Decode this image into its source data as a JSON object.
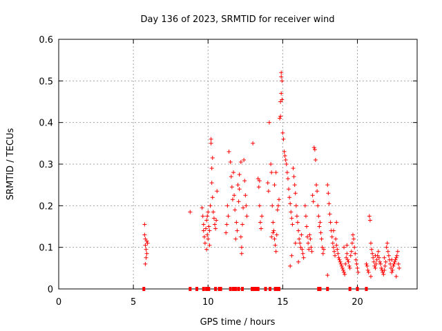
{
  "chart_data": {
    "type": "scatter",
    "title": "Day 136 of 2023, SRMTID for receiver wind",
    "xlabel": "GPS time / hours",
    "ylabel": "SRMTID / TECUs",
    "xlim": [
      0,
      24
    ],
    "ylim": [
      0,
      0.6
    ],
    "x_ticks": [
      0,
      5,
      10,
      15,
      20
    ],
    "x_tick_labels": [
      "0",
      "5",
      "10",
      "15",
      "20"
    ],
    "y_ticks": [
      0,
      0.1,
      0.2,
      0.3,
      0.4,
      0.5,
      0.6
    ],
    "y_tick_labels": [
      "0",
      "0.1",
      "0.2",
      "0.3",
      "0.4",
      "0.5",
      "0.6"
    ],
    "grid": true,
    "series": [
      {
        "name": "SRMTID",
        "color": "#ff0000",
        "marker": "plus",
        "points": [
          [
            5.75,
            0.155
          ],
          [
            5.75,
            0.13
          ],
          [
            5.8,
            0.12
          ],
          [
            5.8,
            0.105
          ],
          [
            5.85,
            0.095
          ],
          [
            5.85,
            0.075
          ],
          [
            5.8,
            0.06
          ],
          [
            5.9,
            0.115
          ],
          [
            5.9,
            0.085
          ],
          [
            5.95,
            0.11
          ],
          [
            8.8,
            0.185
          ],
          [
            9.6,
            0.195
          ],
          [
            9.65,
            0.175
          ],
          [
            9.7,
            0.155
          ],
          [
            9.7,
            0.14
          ],
          [
            9.75,
            0.125
          ],
          [
            9.8,
            0.11
          ],
          [
            9.85,
            0.145
          ],
          [
            9.9,
            0.165
          ],
          [
            9.9,
            0.095
          ],
          [
            9.95,
            0.13
          ],
          [
            10.0,
            0.12
          ],
          [
            10.0,
            0.185
          ],
          [
            10.05,
            0.15
          ],
          [
            10.1,
            0.105
          ],
          [
            10.15,
            0.2
          ],
          [
            10.2,
            0.36
          ],
          [
            10.2,
            0.35
          ],
          [
            10.25,
            0.255
          ],
          [
            10.3,
            0.22
          ],
          [
            10.35,
            0.185
          ],
          [
            10.4,
            0.17
          ],
          [
            10.45,
            0.155
          ],
          [
            10.5,
            0.145
          ],
          [
            10.55,
            0.165
          ],
          [
            10.6,
            0.235
          ],
          [
            10.25,
            0.29
          ],
          [
            10.3,
            0.315
          ],
          [
            10.1,
            0.14
          ],
          [
            9.95,
            0.175
          ],
          [
            11.2,
            0.135
          ],
          [
            11.25,
            0.155
          ],
          [
            11.3,
            0.2
          ],
          [
            11.35,
            0.175
          ],
          [
            11.4,
            0.33
          ],
          [
            11.5,
            0.305
          ],
          [
            11.55,
            0.27
          ],
          [
            11.6,
            0.245
          ],
          [
            11.65,
            0.215
          ],
          [
            11.7,
            0.28
          ],
          [
            11.75,
            0.225
          ],
          [
            11.8,
            0.19
          ],
          [
            11.9,
            0.16
          ],
          [
            11.95,
            0.14
          ],
          [
            12.0,
            0.25
          ],
          [
            12.05,
            0.21
          ],
          [
            12.1,
            0.275
          ],
          [
            12.2,
            0.305
          ],
          [
            12.25,
            0.1
          ],
          [
            12.25,
            0.085
          ],
          [
            12.3,
            0.155
          ],
          [
            12.35,
            0.195
          ],
          [
            12.4,
            0.31
          ],
          [
            12.45,
            0.26
          ],
          [
            12.5,
            0.225
          ],
          [
            12.55,
            0.2
          ],
          [
            12.6,
            0.175
          ],
          [
            12.2,
            0.125
          ],
          [
            12.1,
            0.24
          ],
          [
            11.85,
            0.12
          ],
          [
            13.0,
            0.35
          ],
          [
            13.35,
            0.265
          ],
          [
            13.4,
            0.245
          ],
          [
            13.45,
            0.2
          ],
          [
            13.5,
            0.16
          ],
          [
            13.55,
            0.145
          ],
          [
            13.6,
            0.175
          ],
          [
            13.45,
            0.26
          ],
          [
            14.0,
            0.255
          ],
          [
            14.05,
            0.235
          ],
          [
            14.1,
            0.4
          ],
          [
            14.2,
            0.3
          ],
          [
            14.25,
            0.28
          ],
          [
            14.3,
            0.2
          ],
          [
            14.35,
            0.16
          ],
          [
            14.4,
            0.14
          ],
          [
            14.45,
            0.12
          ],
          [
            14.5,
            0.105
          ],
          [
            14.55,
            0.09
          ],
          [
            14.6,
            0.13
          ],
          [
            14.65,
            0.19
          ],
          [
            14.7,
            0.2
          ],
          [
            14.75,
            0.215
          ],
          [
            14.8,
            0.41
          ],
          [
            14.85,
            0.415
          ],
          [
            14.9,
            0.52
          ],
          [
            14.9,
            0.51
          ],
          [
            14.95,
            0.5
          ],
          [
            14.9,
            0.47
          ],
          [
            14.95,
            0.455
          ],
          [
            14.85,
            0.45
          ],
          [
            15.0,
            0.375
          ],
          [
            15.05,
            0.36
          ],
          [
            15.1,
            0.33
          ],
          [
            15.15,
            0.32
          ],
          [
            15.2,
            0.31
          ],
          [
            15.25,
            0.3
          ],
          [
            15.3,
            0.28
          ],
          [
            15.35,
            0.265
          ],
          [
            15.4,
            0.24
          ],
          [
            15.45,
            0.22
          ],
          [
            15.5,
            0.205
          ],
          [
            15.55,
            0.185
          ],
          [
            15.6,
            0.17
          ],
          [
            15.65,
            0.155
          ],
          [
            15.7,
            0.29
          ],
          [
            15.75,
            0.27
          ],
          [
            15.8,
            0.25
          ],
          [
            15.85,
            0.23
          ],
          [
            15.9,
            0.2
          ],
          [
            15.95,
            0.175
          ],
          [
            16.0,
            0.16
          ],
          [
            16.05,
            0.14
          ],
          [
            16.1,
            0.12
          ],
          [
            16.15,
            0.11
          ],
          [
            16.2,
            0.1
          ],
          [
            16.25,
            0.13
          ],
          [
            16.3,
            0.095
          ],
          [
            16.35,
            0.085
          ],
          [
            16.4,
            0.075
          ],
          [
            14.25,
            0.125
          ],
          [
            14.35,
            0.135
          ],
          [
            14.45,
            0.25
          ],
          [
            14.55,
            0.28
          ],
          [
            15.5,
            0.055
          ],
          [
            15.6,
            0.08
          ],
          [
            15.85,
            0.11
          ],
          [
            16.05,
            0.065
          ],
          [
            16.5,
            0.2
          ],
          [
            16.55,
            0.175
          ],
          [
            16.6,
            0.15
          ],
          [
            16.65,
            0.125
          ],
          [
            16.7,
            0.11
          ],
          [
            16.75,
            0.095
          ],
          [
            16.8,
            0.13
          ],
          [
            16.85,
            0.12
          ],
          [
            16.9,
            0.1
          ],
          [
            16.95,
            0.09
          ],
          [
            17.0,
            0.225
          ],
          [
            17.05,
            0.21
          ],
          [
            17.1,
            0.34
          ],
          [
            17.15,
            0.335
          ],
          [
            17.2,
            0.31
          ],
          [
            17.25,
            0.25
          ],
          [
            17.3,
            0.235
          ],
          [
            17.35,
            0.2
          ],
          [
            17.4,
            0.175
          ],
          [
            17.45,
            0.15
          ],
          [
            17.5,
            0.16
          ],
          [
            17.55,
            0.135
          ],
          [
            17.6,
            0.12
          ],
          [
            17.65,
            0.1
          ],
          [
            17.7,
            0.085
          ],
          [
            17.75,
            0.095
          ],
          [
            18.0,
            0.25
          ],
          [
            18.05,
            0.23
          ],
          [
            18.1,
            0.205
          ],
          [
            18.15,
            0.18
          ],
          [
            18.2,
            0.16
          ],
          [
            18.25,
            0.14
          ],
          [
            18.3,
            0.125
          ],
          [
            18.35,
            0.11
          ],
          [
            18.4,
            0.1
          ],
          [
            18.45,
            0.09
          ],
          [
            18.5,
            0.08
          ],
          [
            18.55,
            0.12
          ],
          [
            18.6,
            0.105
          ],
          [
            18.65,
            0.095
          ],
          [
            18.7,
            0.085
          ],
          [
            18.75,
            0.075
          ],
          [
            18.8,
            0.07
          ],
          [
            18.85,
            0.065
          ],
          [
            18.9,
            0.06
          ],
          [
            18.95,
            0.055
          ],
          [
            19.0,
            0.05
          ],
          [
            19.05,
            0.045
          ],
          [
            19.1,
            0.04
          ],
          [
            19.15,
            0.035
          ],
          [
            19.2,
            0.06
          ],
          [
            19.25,
            0.075
          ],
          [
            19.3,
            0.085
          ],
          [
            19.35,
            0.07
          ],
          [
            19.4,
            0.065
          ],
          [
            19.45,
            0.055
          ],
          [
            19.5,
            0.05
          ],
          [
            19.55,
            0.08
          ],
          [
            19.6,
            0.09
          ],
          [
            19.65,
            0.11
          ],
          [
            19.7,
            0.13
          ],
          [
            19.75,
            0.12
          ],
          [
            19.8,
            0.1
          ],
          [
            19.85,
            0.085
          ],
          [
            19.9,
            0.07
          ],
          [
            19.95,
            0.06
          ],
          [
            20.0,
            0.05
          ],
          [
            20.05,
            0.04
          ],
          [
            18.0,
            0.033
          ],
          [
            18.4,
            0.14
          ],
          [
            18.6,
            0.16
          ],
          [
            19.1,
            0.1
          ],
          [
            19.3,
            0.105
          ],
          [
            20.6,
            0.06
          ],
          [
            20.65,
            0.055
          ],
          [
            20.7,
            0.045
          ],
          [
            20.75,
            0.04
          ],
          [
            20.8,
            0.175
          ],
          [
            20.85,
            0.165
          ],
          [
            20.9,
            0.11
          ],
          [
            20.95,
            0.095
          ],
          [
            21.0,
            0.085
          ],
          [
            21.05,
            0.075
          ],
          [
            21.1,
            0.065
          ],
          [
            21.15,
            0.055
          ],
          [
            21.2,
            0.05
          ],
          [
            21.25,
            0.06
          ],
          [
            21.3,
            0.07
          ],
          [
            21.35,
            0.08
          ],
          [
            21.4,
            0.09
          ],
          [
            21.45,
            0.075
          ],
          [
            21.5,
            0.065
          ],
          [
            21.55,
            0.06
          ],
          [
            21.6,
            0.05
          ],
          [
            21.65,
            0.045
          ],
          [
            21.7,
            0.04
          ],
          [
            21.75,
            0.035
          ],
          [
            21.8,
            0.045
          ],
          [
            21.85,
            0.055
          ],
          [
            21.9,
            0.065
          ],
          [
            21.95,
            0.1
          ],
          [
            22.0,
            0.11
          ],
          [
            22.05,
            0.09
          ],
          [
            22.1,
            0.08
          ],
          [
            22.15,
            0.07
          ],
          [
            22.2,
            0.06
          ],
          [
            22.25,
            0.05
          ],
          [
            22.3,
            0.04
          ],
          [
            22.35,
            0.045
          ],
          [
            22.4,
            0.055
          ],
          [
            22.45,
            0.06
          ],
          [
            22.5,
            0.065
          ],
          [
            22.55,
            0.07
          ],
          [
            22.6,
            0.075
          ],
          [
            22.65,
            0.08
          ],
          [
            22.7,
            0.09
          ],
          [
            22.75,
            0.06
          ],
          [
            22.8,
            0.05
          ],
          [
            21.2,
            0.08
          ],
          [
            21.8,
            0.075
          ],
          [
            22.3,
            0.07
          ],
          [
            20.9,
            0.03
          ],
          [
            22.6,
            0.03
          ]
        ],
        "zero_x": [
          5.7,
          8.8,
          9.25,
          9.7,
          9.9,
          10.05,
          10.5,
          10.75,
          10.85,
          11.5,
          11.7,
          11.85,
          12.05,
          12.3,
          12.95,
          13.05,
          13.2,
          13.35,
          13.85,
          14.15,
          14.5,
          14.65,
          14.75,
          17.4,
          17.5,
          18.0,
          19.5,
          20.0,
          20.6
        ]
      }
    ]
  }
}
